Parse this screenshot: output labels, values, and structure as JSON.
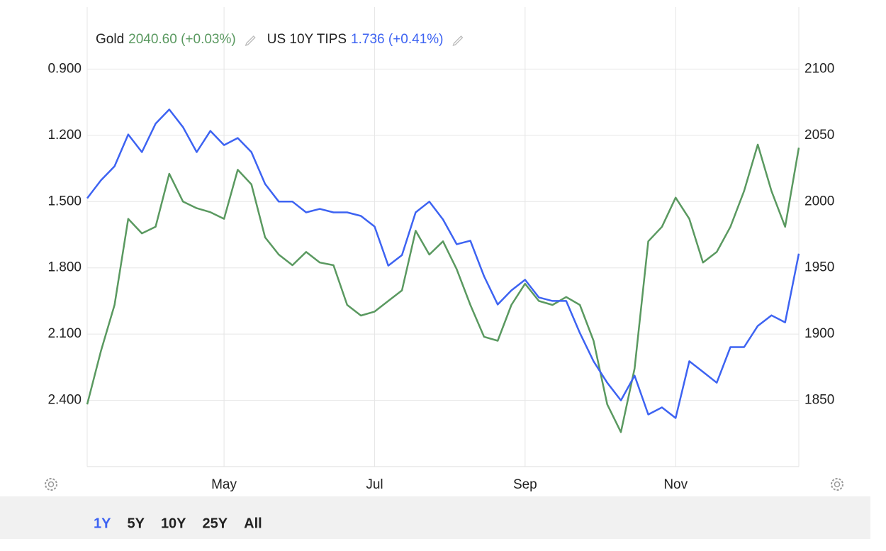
{
  "chart_data": {
    "type": "line",
    "legend": [
      {
        "name": "Gold",
        "value_label": "2040.60 (+0.03%)"
      },
      {
        "name": "US 10Y TIPS",
        "value_label": "1.736 (+0.41%)"
      }
    ],
    "categories": [
      null,
      null,
      null,
      null,
      null,
      null,
      null,
      null,
      null,
      null,
      "May",
      null,
      null,
      null,
      null,
      null,
      null,
      null,
      null,
      null,
      null,
      "Jul",
      null,
      null,
      null,
      null,
      null,
      null,
      null,
      null,
      null,
      null,
      "Sep",
      null,
      null,
      null,
      null,
      null,
      null,
      null,
      null,
      null,
      null,
      "Nov",
      null,
      null,
      null,
      null,
      null,
      null,
      null,
      null,
      null
    ],
    "series": [
      {
        "name": "US 10Y TIPS",
        "color": "#3d63f2",
        "axis": "y",
        "values": [
          1.485,
          1.404,
          1.34,
          1.196,
          1.276,
          1.147,
          1.083,
          1.163,
          1.276,
          1.18,
          1.244,
          1.212,
          1.276,
          1.42,
          1.5,
          1.5,
          1.549,
          1.533,
          1.549,
          1.549,
          1.565,
          1.613,
          1.79,
          1.742,
          1.549,
          1.5,
          1.581,
          1.693,
          1.677,
          1.838,
          1.966,
          1.902,
          1.854,
          1.934,
          1.95,
          1.95,
          2.095,
          2.223,
          2.32,
          2.4,
          2.288,
          2.464,
          2.432,
          2.48,
          2.223,
          2.271,
          2.32,
          2.159,
          2.159,
          2.063,
          2.015,
          2.047,
          1.736
        ]
      },
      {
        "name": "Gold",
        "color": "#5a9960",
        "axis": "y2",
        "values": [
          1847,
          1887,
          1922,
          1987,
          1976,
          1981,
          2021,
          2000,
          1995,
          1992,
          1987,
          2024,
          2013,
          1973,
          1960,
          1952,
          1962,
          1954,
          1952,
          1922,
          1914,
          1917,
          1925,
          1933,
          1978,
          1960,
          1970,
          1949,
          1922,
          1898,
          1895,
          1922,
          1938,
          1925,
          1922,
          1928,
          1922,
          1895,
          1847,
          1826,
          1874,
          1970,
          1981,
          2003,
          1987,
          1954,
          1962,
          1981,
          2008,
          2043,
          2008,
          1981,
          2040.6
        ]
      }
    ],
    "ylim": [
      2.7,
      0.6
    ],
    "yticks": [
      {
        "value": 0.9,
        "label": "0.900"
      },
      {
        "value": 1.2,
        "label": "1.200"
      },
      {
        "value": 1.5,
        "label": "1.500"
      },
      {
        "value": 1.8,
        "label": "1.800"
      },
      {
        "value": 2.1,
        "label": "2.100"
      },
      {
        "value": 2.4,
        "label": "2.400"
      }
    ],
    "y2lim": [
      1800,
      2150
    ],
    "y2ticks": [
      1850,
      1900,
      1950,
      2000,
      2050,
      2100
    ],
    "grid": true
  },
  "range_selector": {
    "options": [
      "1Y",
      "5Y",
      "10Y",
      "25Y",
      "All"
    ],
    "active": 0
  }
}
